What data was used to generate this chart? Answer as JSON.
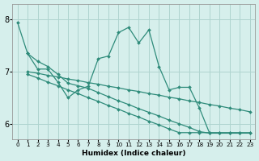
{
  "xlabel": "Humidex (Indice chaleur)",
  "ylabel": "",
  "xlim": [
    -0.5,
    23.5
  ],
  "ylim": [
    5.7,
    8.3
  ],
  "yticks": [
    6,
    7,
    8
  ],
  "xticks": [
    0,
    1,
    2,
    3,
    4,
    5,
    6,
    7,
    8,
    9,
    10,
    11,
    12,
    13,
    14,
    15,
    16,
    17,
    18,
    19,
    20,
    21,
    22,
    23
  ],
  "bg_color": "#d6efec",
  "line_color": "#2e8b7a",
  "grid_color": "#aed4cf",
  "lines": [
    {
      "x": [
        0,
        1,
        2,
        3,
        4,
        5,
        6,
        7,
        8,
        9,
        10,
        11,
        12,
        13,
        14,
        15,
        16,
        17,
        18,
        19,
        20,
        21,
        22
      ],
      "y": [
        7.95,
        7.35,
        7.05,
        7.05,
        6.8,
        6.5,
        6.65,
        6.72,
        7.25,
        7.3,
        7.75,
        7.85,
        7.55,
        7.8,
        7.1,
        6.65,
        6.7,
        6.7,
        6.3,
        5.82,
        5.82,
        5.82,
        5.82
      ]
    },
    {
      "x": [
        1,
        2,
        3,
        4,
        5,
        6,
        7,
        8,
        9,
        10,
        11,
        12,
        13,
        14,
        15,
        16,
        17,
        18,
        19,
        20,
        21,
        22,
        23
      ],
      "y": [
        7.35,
        7.2,
        7.1,
        6.95,
        6.78,
        6.73,
        6.68,
        6.6,
        6.52,
        6.44,
        6.37,
        6.29,
        6.22,
        6.15,
        6.07,
        6.0,
        5.93,
        5.85,
        5.82,
        5.82,
        5.82,
        5.82,
        5.82
      ]
    },
    {
      "x": [
        1,
        2,
        3,
        4,
        5,
        6,
        7,
        8,
        9,
        10,
        11,
        12,
        13,
        14,
        15,
        16,
        17,
        18,
        19,
        20,
        21,
        22,
        23
      ],
      "y": [
        7.0,
        6.97,
        6.93,
        6.9,
        6.86,
        6.83,
        6.79,
        6.76,
        6.72,
        6.69,
        6.65,
        6.62,
        6.58,
        6.55,
        6.51,
        6.48,
        6.44,
        6.41,
        6.37,
        6.34,
        6.3,
        6.27,
        6.23
      ]
    },
    {
      "x": [
        1,
        2,
        3,
        4,
        5,
        6,
        7,
        8,
        9,
        10,
        11,
        12,
        13,
        14,
        15,
        16,
        17,
        18,
        19,
        20,
        21,
        22,
        23
      ],
      "y": [
        6.95,
        6.88,
        6.8,
        6.73,
        6.65,
        6.58,
        6.5,
        6.43,
        6.35,
        6.28,
        6.2,
        6.13,
        6.05,
        5.98,
        5.9,
        5.83,
        5.83,
        5.83,
        5.83,
        5.83,
        5.83,
        5.83,
        5.83
      ]
    }
  ],
  "marker": "D",
  "markersize": 2.0,
  "linewidth": 0.9,
  "xlabel_fontsize": 6.5,
  "xlabel_fontweight": "bold",
  "ytick_fontsize": 7,
  "xtick_fontsize": 5.2
}
